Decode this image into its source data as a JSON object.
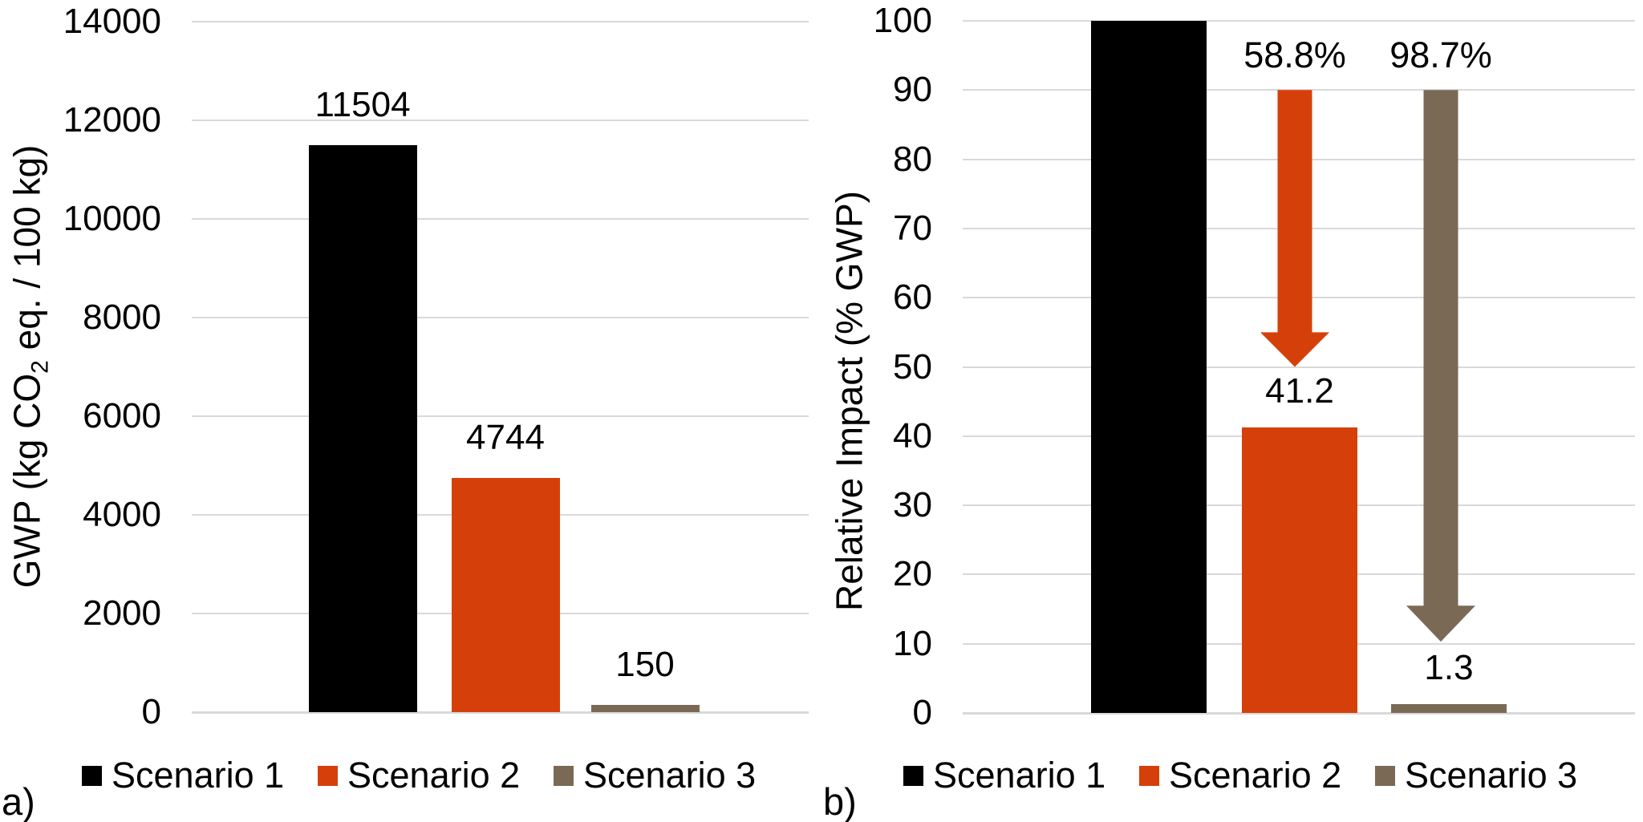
{
  "figure": {
    "description": "Two-panel bar chart figure comparing GWP of three scenarios",
    "background": "#ffffff"
  },
  "colors": {
    "scenario1": "#000000",
    "scenario2": "#D5400A",
    "scenario3": "#7A6A55",
    "gridline": "#D9D9D9",
    "text": "#000000"
  },
  "chart_data": [
    {
      "type": "bar",
      "panel_label": "a)",
      "ylabel": "GWP (kg CO2 eq. / 100 kg)",
      "ylabel_parts": {
        "pre": "GWP (kg CO",
        "sub": "2",
        "post": " eq. / 100 kg)"
      },
      "categories": [
        "Scenario 1",
        "Scenario 2",
        "Scenario 3"
      ],
      "values": [
        11504,
        4744,
        150
      ],
      "value_labels": [
        "11504",
        "4744",
        "150"
      ],
      "series_colors": [
        "#000000",
        "#D5400A",
        "#7A6A55"
      ],
      "ylim": [
        0,
        14000
      ],
      "yticks": [
        0,
        2000,
        4000,
        6000,
        8000,
        10000,
        12000,
        14000
      ],
      "grid": true,
      "grid_color": "#D9D9D9",
      "legend_position": "bottom",
      "annotations": []
    },
    {
      "type": "bar",
      "panel_label": "b)",
      "ylabel": "Relative Impact (% GWP)",
      "ylabel_parts": {
        "pre": "Relative Impact (% GWP)",
        "sub": "",
        "post": ""
      },
      "categories": [
        "Scenario 1",
        "Scenario 2",
        "Scenario 3"
      ],
      "values": [
        100,
        41.2,
        1.3
      ],
      "value_labels": [
        "",
        "41.2",
        "1.3"
      ],
      "series_colors": [
        "#000000",
        "#D5400A",
        "#7A6A55"
      ],
      "ylim": [
        0,
        100
      ],
      "yticks": [
        0,
        10,
        20,
        30,
        40,
        50,
        60,
        70,
        80,
        90,
        100
      ],
      "grid": true,
      "grid_color": "#D9D9D9",
      "legend_position": "bottom",
      "annotations": [
        {
          "type": "arrow-down",
          "label": "58.8%",
          "target": "Scenario 2",
          "color": "#D5400A",
          "from_value": 90,
          "head_value": 55,
          "tip_value": 50
        },
        {
          "type": "arrow-down",
          "label": "98.7%",
          "target": "Scenario 3",
          "color": "#7A6A55",
          "from_value": 90,
          "head_value": 15.5,
          "tip_value": 10.3
        }
      ]
    }
  ]
}
